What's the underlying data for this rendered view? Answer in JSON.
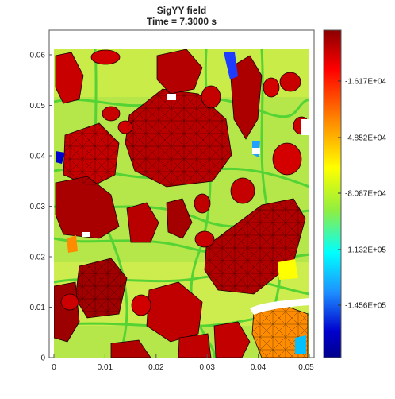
{
  "chart_data": {
    "type": "heatmap",
    "title": "SigYY field",
    "subtitle": "Time =   7.3000 s",
    "xlim": [
      0,
      0.05
    ],
    "ylim": [
      0,
      0.065
    ],
    "x_ticks": [
      "0",
      "0.01",
      "0.02",
      "0.03",
      "0.04",
      "0.05"
    ],
    "y_ticks": [
      "0",
      "0.01",
      "0.02",
      "0.03",
      "0.04",
      "0.05",
      "0.06"
    ],
    "colorbar_ticks": [
      "-1.617E+04",
      "-4.852E+04",
      "-8.087E+04",
      "-1.132E+05",
      "-1.456E+05"
    ],
    "colorbar_colors": [
      "#8b0000",
      "#ff0000",
      "#ff8c00",
      "#ffff00",
      "#90ee40",
      "#00ffff",
      "#1e90ff",
      "#0000cd",
      "#00008b"
    ],
    "grid": false,
    "colorbar_position": "right"
  }
}
